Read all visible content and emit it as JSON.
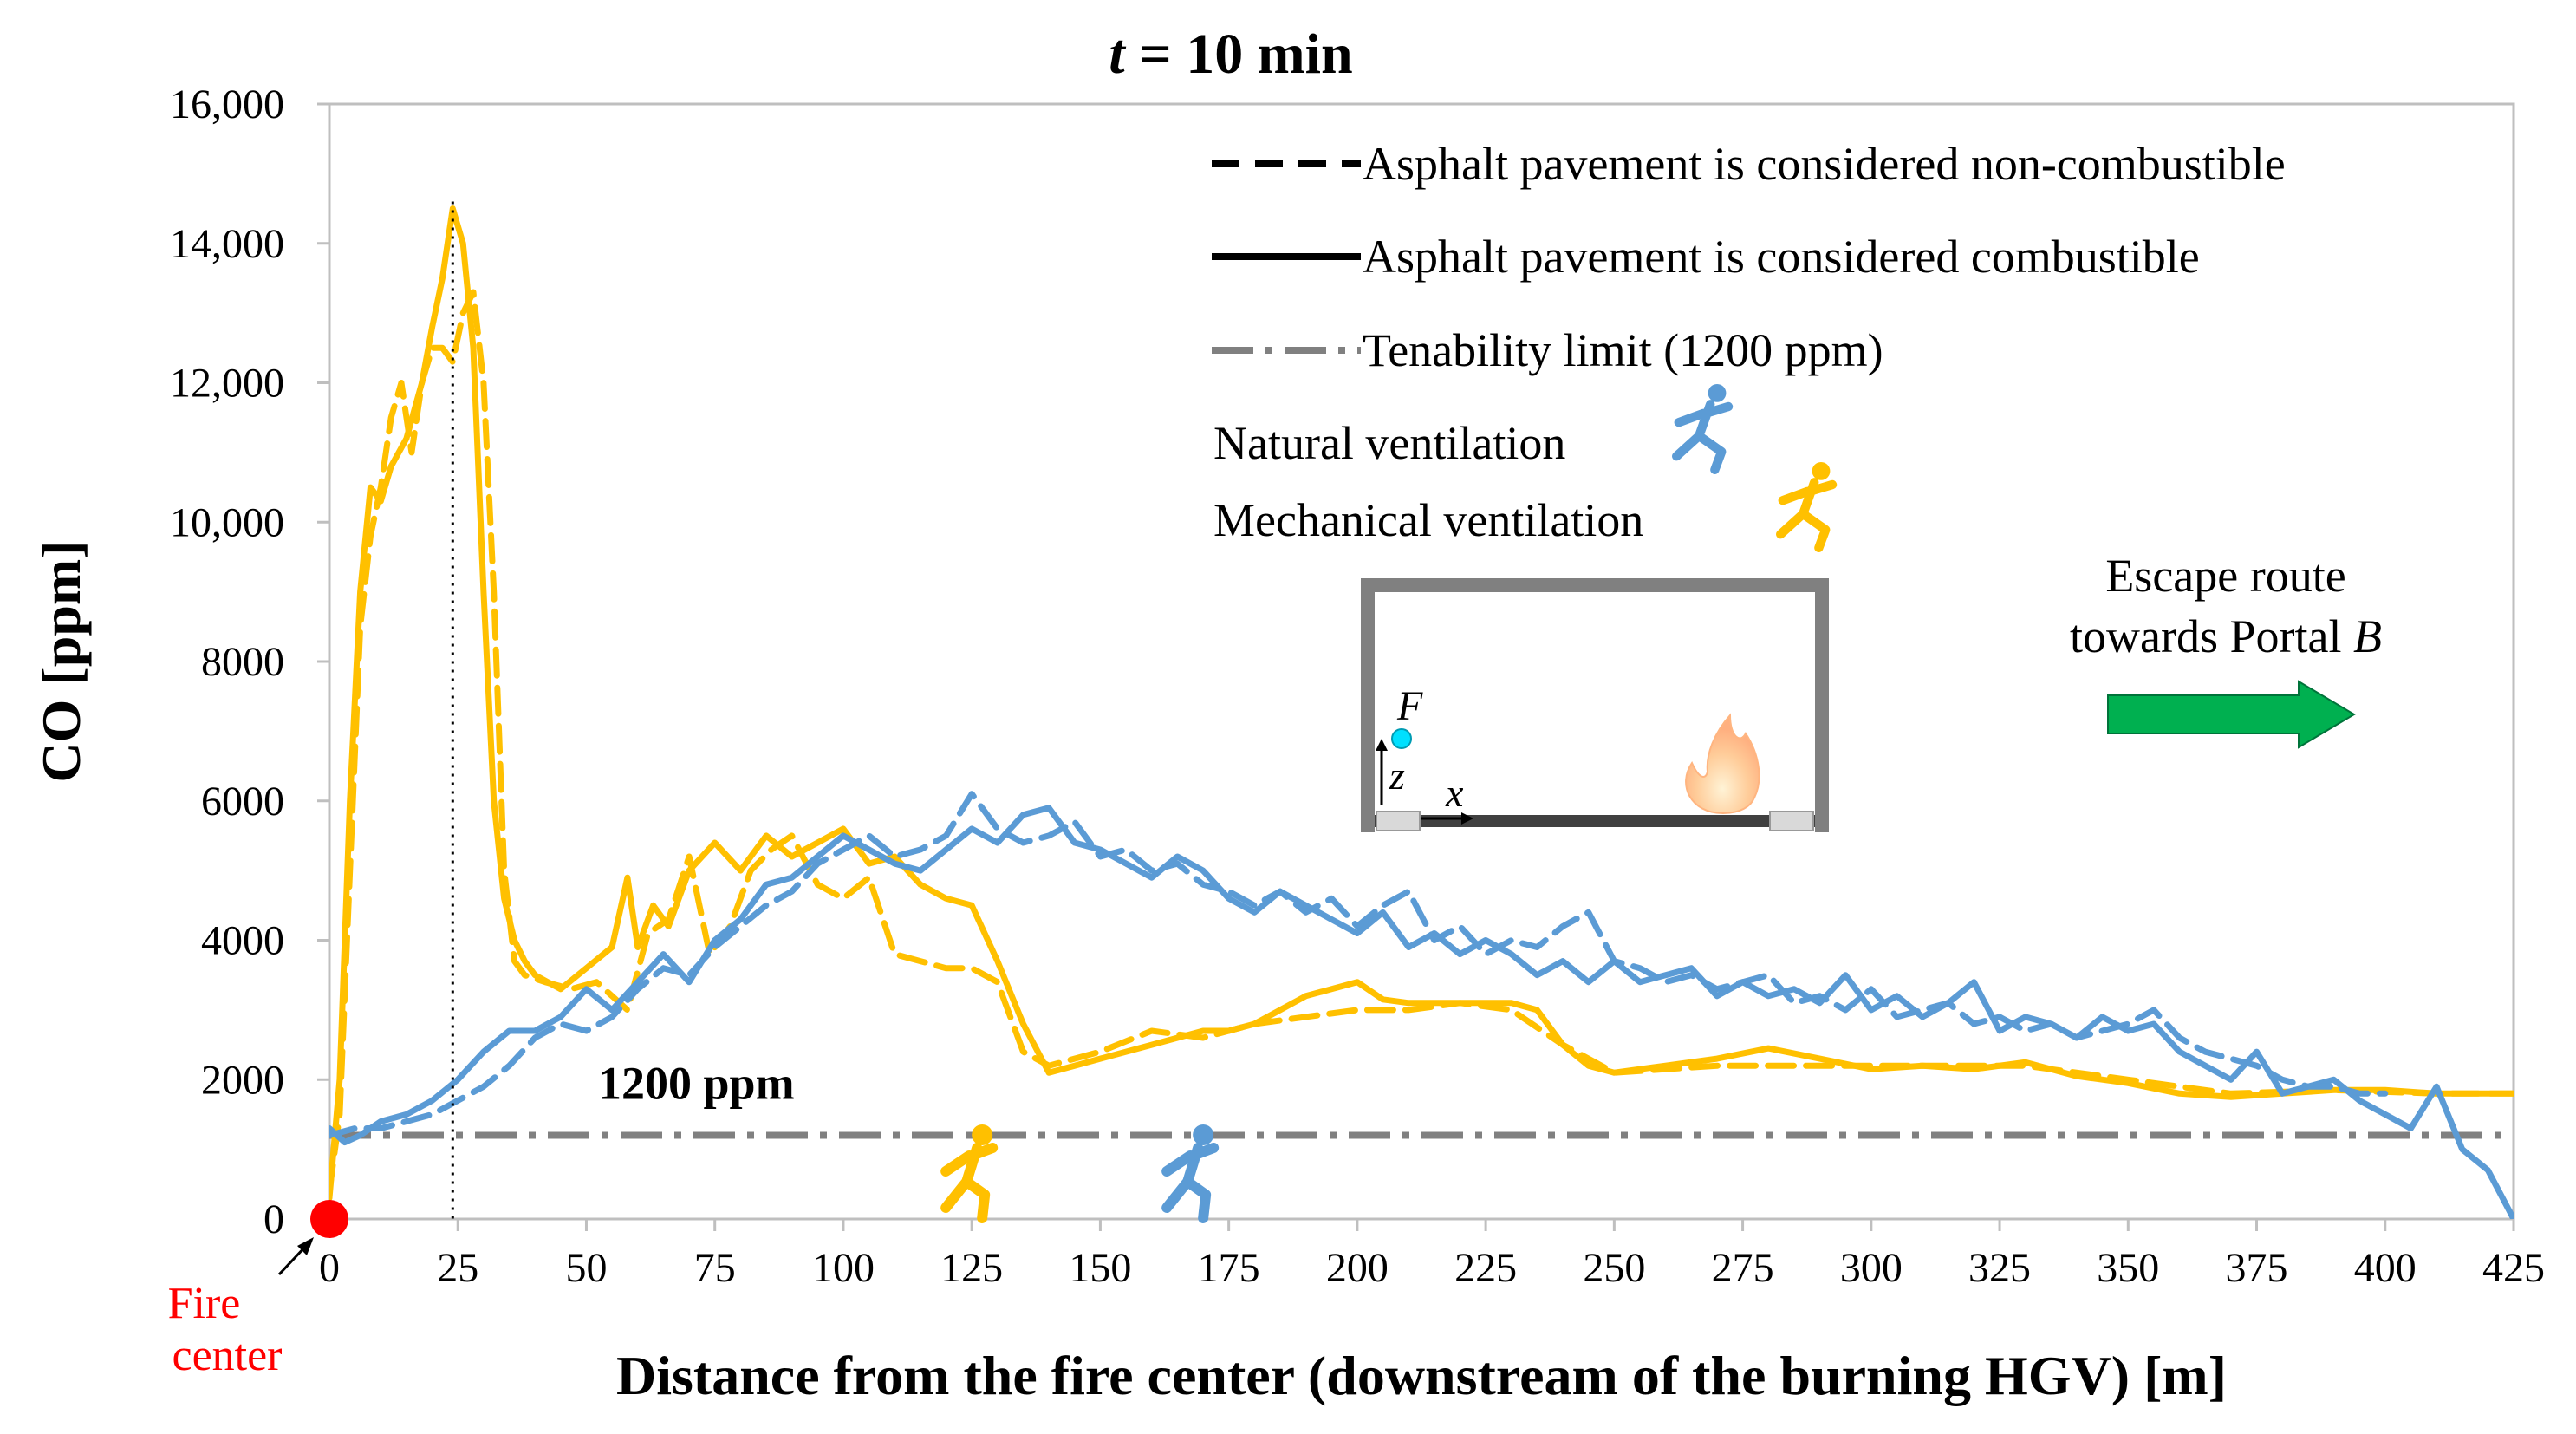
{
  "colors": {
    "natural": "#5b9bd5",
    "mechanical": "#ffc000",
    "tenability": "#808080",
    "fire": "#ff0000",
    "arrow": "#00b050",
    "annotation_fire": "#ff0000"
  },
  "chart_data": {
    "type": "line",
    "title_prefix": "t",
    "title_suffix": " = 10 min",
    "xlabel": "Distance from the fire center (downstream of the burning HGV) [m]",
    "ylabel": "CO [ppm]",
    "xlim": [
      0,
      425
    ],
    "ylim": [
      0,
      16000
    ],
    "xticks": [
      0,
      25,
      50,
      75,
      100,
      125,
      150,
      175,
      200,
      225,
      250,
      275,
      300,
      325,
      350,
      375,
      400,
      425
    ],
    "yticks": [
      0,
      2000,
      4000,
      6000,
      8000,
      10000,
      12000,
      14000,
      16000
    ],
    "ytick_labels": [
      "0",
      "2000",
      "4000",
      "6000",
      "8000",
      "10,000",
      "12,000",
      "14,000",
      "16,000"
    ],
    "legend": {
      "dashed": "Asphalt pavement is considered non-combustible",
      "solid": "Asphalt pavement is considered combustible",
      "dashdot": "Tenability limit (1200 ppm)",
      "natural": "Natural ventilation",
      "mechanical": "Mechanical ventilation"
    },
    "tenability_value": 1200,
    "tenability_label": "1200 ppm",
    "peak_marker_x": 24,
    "fire_center_label": [
      "Fire",
      "center"
    ],
    "escape_label_line1": "Escape route",
    "escape_label_line2_prefix": "towards Portal ",
    "escape_label_line2_italic": "B",
    "inset_labels": {
      "F": "F",
      "z": "z",
      "x": "x"
    },
    "person_markers": [
      {
        "series": "Mechanical ventilation",
        "x": 125
      },
      {
        "series": "Natural ventilation",
        "x": 168
      }
    ],
    "series": [
      {
        "name": "Mechanical ventilation - Asphalt pavement is considered combustible",
        "color": "mechanical",
        "style": "solid",
        "x": [
          0,
          2,
          4,
          6,
          8,
          10,
          12,
          15,
          18,
          20,
          22,
          24,
          26,
          28,
          30,
          32,
          34,
          36,
          38,
          40,
          45,
          50,
          55,
          58,
          60,
          63,
          66,
          70,
          75,
          80,
          85,
          90,
          95,
          100,
          105,
          110,
          115,
          120,
          125,
          130,
          135,
          140,
          145,
          150,
          160,
          170,
          175,
          180,
          190,
          200,
          205,
          210,
          220,
          230,
          235,
          240,
          245,
          250,
          260,
          270,
          280,
          290,
          300,
          310,
          320,
          330,
          340,
          350,
          360,
          370,
          380,
          390,
          400,
          410,
          425
        ],
        "values": [
          300,
          2000,
          6000,
          9000,
          10500,
          10300,
          10800,
          11200,
          12000,
          12800,
          13500,
          14500,
          14000,
          12500,
          9000,
          6000,
          4600,
          4000,
          3700,
          3500,
          3300,
          3600,
          3900,
          4900,
          3900,
          4500,
          4200,
          5000,
          5400,
          5000,
          5500,
          5200,
          5400,
          5600,
          5100,
          5200,
          4800,
          4600,
          4500,
          3700,
          2800,
          2100,
          2200,
          2300,
          2500,
          2700,
          2700,
          2800,
          3200,
          3400,
          3150,
          3100,
          3100,
          3100,
          3000,
          2500,
          2200,
          2100,
          2200,
          2300,
          2450,
          2300,
          2150,
          2200,
          2150,
          2250,
          2050,
          1950,
          1800,
          1750,
          1800,
          1850,
          1850,
          1800,
          1800
        ]
      },
      {
        "name": "Mechanical ventilation - Asphalt pavement is considered non-combustible",
        "color": "mechanical",
        "style": "dashed",
        "x": [
          0,
          2,
          4,
          6,
          8,
          10,
          12,
          14,
          16,
          18,
          20,
          22,
          24,
          26,
          28,
          30,
          32,
          34,
          36,
          38,
          42,
          47,
          52,
          58,
          62,
          66,
          70,
          74,
          78,
          82,
          86,
          90,
          95,
          100,
          105,
          110,
          115,
          120,
          125,
          130,
          135,
          140,
          150,
          160,
          170,
          180,
          190,
          200,
          210,
          220,
          230,
          240,
          250,
          270,
          290,
          310,
          330,
          350,
          370,
          390,
          410,
          425
        ],
        "values": [
          400,
          1500,
          5000,
          8500,
          9800,
          10500,
          11500,
          12000,
          11000,
          12000,
          12500,
          12500,
          12300,
          13000,
          13300,
          12000,
          9000,
          5000,
          3700,
          3500,
          3400,
          3300,
          3400,
          3000,
          4100,
          4300,
          5200,
          3800,
          4200,
          5000,
          5300,
          5500,
          4800,
          4600,
          4900,
          3800,
          3700,
          3600,
          3600,
          3400,
          2400,
          2200,
          2400,
          2700,
          2600,
          2800,
          2900,
          3000,
          3000,
          3100,
          3000,
          2500,
          2100,
          2200,
          2200,
          2200,
          2200,
          2000,
          1800,
          1850,
          1800,
          1800
        ]
      },
      {
        "name": "Natural ventilation - Asphalt pavement is considered combustible",
        "color": "natural",
        "style": "solid",
        "x": [
          0,
          3,
          6,
          10,
          15,
          20,
          25,
          30,
          35,
          40,
          45,
          50,
          55,
          60,
          65,
          70,
          75,
          80,
          85,
          90,
          95,
          100,
          105,
          110,
          115,
          120,
          125,
          130,
          135,
          140,
          145,
          150,
          155,
          160,
          165,
          170,
          175,
          180,
          185,
          190,
          195,
          200,
          205,
          210,
          215,
          220,
          225,
          230,
          235,
          240,
          245,
          250,
          255,
          260,
          265,
          270,
          275,
          280,
          285,
          290,
          295,
          300,
          305,
          310,
          315,
          320,
          325,
          330,
          335,
          340,
          345,
          350,
          355,
          360,
          365,
          370,
          375,
          380,
          385,
          390,
          395,
          400,
          405,
          410,
          415,
          420,
          425
        ],
        "values": [
          1300,
          1100,
          1200,
          1400,
          1500,
          1700,
          2000,
          2400,
          2700,
          2700,
          2900,
          3300,
          3000,
          3400,
          3800,
          3400,
          4000,
          4300,
          4800,
          4900,
          5200,
          5500,
          5300,
          5100,
          5000,
          5300,
          5600,
          5400,
          5800,
          5900,
          5400,
          5300,
          5100,
          4900,
          5200,
          5000,
          4600,
          4400,
          4700,
          4500,
          4300,
          4100,
          4400,
          3900,
          4100,
          3800,
          4000,
          3800,
          3500,
          3700,
          3400,
          3700,
          3400,
          3500,
          3600,
          3200,
          3400,
          3200,
          3300,
          3100,
          3500,
          3000,
          3200,
          2900,
          3100,
          3400,
          2700,
          2900,
          2800,
          2600,
          2900,
          2700,
          2800,
          2400,
          2200,
          2000,
          2400,
          1800,
          1900,
          2000,
          1700,
          1500,
          1300,
          1900,
          1000,
          700,
          0
        ]
      },
      {
        "name": "Natural ventilation - Asphalt pavement is considered non-combustible",
        "color": "natural",
        "style": "dashed",
        "x": [
          0,
          5,
          10,
          15,
          20,
          25,
          30,
          35,
          40,
          45,
          50,
          55,
          60,
          65,
          70,
          75,
          80,
          85,
          90,
          95,
          100,
          105,
          110,
          115,
          120,
          125,
          130,
          135,
          140,
          145,
          150,
          155,
          160,
          165,
          170,
          175,
          180,
          185,
          190,
          195,
          200,
          205,
          210,
          215,
          220,
          225,
          230,
          235,
          240,
          245,
          250,
          255,
          260,
          265,
          270,
          275,
          280,
          285,
          290,
          295,
          300,
          305,
          310,
          315,
          320,
          325,
          330,
          335,
          340,
          345,
          350,
          355,
          360,
          365,
          370,
          375,
          380,
          385,
          390,
          395,
          400
        ],
        "values": [
          1200,
          1300,
          1300,
          1400,
          1500,
          1700,
          1900,
          2200,
          2600,
          2800,
          2700,
          2900,
          3300,
          3600,
          3500,
          3900,
          4200,
          4500,
          4700,
          5100,
          5300,
          5500,
          5200,
          5300,
          5500,
          6100,
          5600,
          5400,
          5500,
          5700,
          5200,
          5300,
          5000,
          5100,
          4800,
          4700,
          4500,
          4700,
          4400,
          4600,
          4200,
          4500,
          4700,
          4000,
          4200,
          3800,
          4000,
          3900,
          4200,
          4400,
          3700,
          3600,
          3400,
          3500,
          3300,
          3400,
          3500,
          3100,
          3200,
          3000,
          3300,
          2900,
          3000,
          3100,
          2800,
          2900,
          2700,
          2800,
          2600,
          2700,
          2800,
          3000,
          2600,
          2400,
          2300,
          2200,
          2000,
          1900,
          1900,
          1800,
          1800
        ]
      }
    ]
  }
}
